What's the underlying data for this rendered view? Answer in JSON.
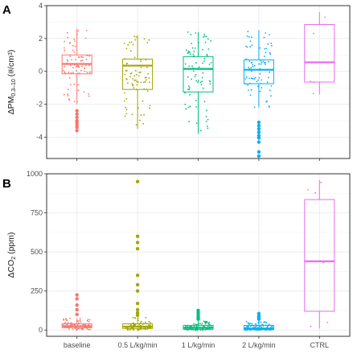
{
  "chart_data": [
    {
      "type": "box",
      "panel_label": "A",
      "ylabel": {
        "prefix": "ΔPM",
        "sub": "0.3–10",
        "suffix": " (#/cm",
        "sup": "3",
        "end": ")"
      },
      "ylim": [
        -5.3,
        4
      ],
      "yticks": [
        -4,
        -2,
        0,
        2,
        4
      ],
      "grid": true,
      "categories": [
        "baseline",
        "0.5 L/kg/min",
        "1 L/kg/min",
        "2 L/kg/min",
        "CTRL"
      ],
      "colors": [
        "#f8766d",
        "#a3a500",
        "#00bf7d",
        "#00b0f6",
        "#e76bf3"
      ],
      "boxes": [
        {
          "min": -2.0,
          "q1": -0.15,
          "median": 0.45,
          "q3": 1.0,
          "max": 2.6
        },
        {
          "min": -3.5,
          "q1": -1.1,
          "median": 0.35,
          "q3": 0.75,
          "max": 2.2
        },
        {
          "min": -3.8,
          "q1": -1.25,
          "median": 0.15,
          "q3": 0.9,
          "max": 2.4
        },
        {
          "min": -2.2,
          "q1": -0.75,
          "median": 0.1,
          "q3": 0.7,
          "max": 2.5
        },
        {
          "min": -1.4,
          "q1": -0.65,
          "median": 0.55,
          "q3": 2.85,
          "max": 3.6
        }
      ],
      "outliers": [
        [
          -2.4,
          -2.6,
          -2.8,
          -3.0,
          -3.1,
          -3.25,
          -3.4,
          -3.6
        ],
        [],
        [],
        [
          -3.1,
          -3.3,
          -3.5,
          -3.7,
          -3.9,
          -4.05,
          -4.3,
          -4.9,
          -5.15
        ],
        []
      ]
    },
    {
      "type": "box",
      "panel_label": "B",
      "ylabel": {
        "prefix": "ΔCO",
        "sub": "2",
        "suffix": " (ppm)",
        "sup": "",
        "end": ""
      },
      "ylim": [
        -40,
        1000
      ],
      "yticks": [
        0,
        250,
        500,
        750,
        1000
      ],
      "grid": true,
      "categories": [
        "baseline",
        "0.5 L/kg/min",
        "1 L/kg/min",
        "2 L/kg/min",
        "CTRL"
      ],
      "colors": [
        "#f8766d",
        "#a3a500",
        "#00bf7d",
        "#00b0f6",
        "#e76bf3"
      ],
      "boxes": [
        {
          "min": 0,
          "q1": 15,
          "median": 25,
          "q3": 40,
          "max": 75
        },
        {
          "min": 0,
          "q1": 10,
          "median": 22,
          "q3": 40,
          "max": 80
        },
        {
          "min": 0,
          "q1": 5,
          "median": 15,
          "q3": 30,
          "max": 60
        },
        {
          "min": 0,
          "q1": 2,
          "median": 10,
          "q3": 30,
          "max": 55
        },
        {
          "min": 10,
          "q1": 120,
          "median": 440,
          "q3": 835,
          "max": 960
        }
      ],
      "outliers": [
        [
          100,
          130,
          160,
          200,
          225
        ],
        [
          95,
          110,
          130,
          170,
          250,
          290,
          350,
          520,
          560,
          600,
          950
        ],
        [
          70,
          80,
          95,
          110,
          125
        ],
        [
          70,
          80,
          90,
          105
        ],
        []
      ]
    }
  ]
}
